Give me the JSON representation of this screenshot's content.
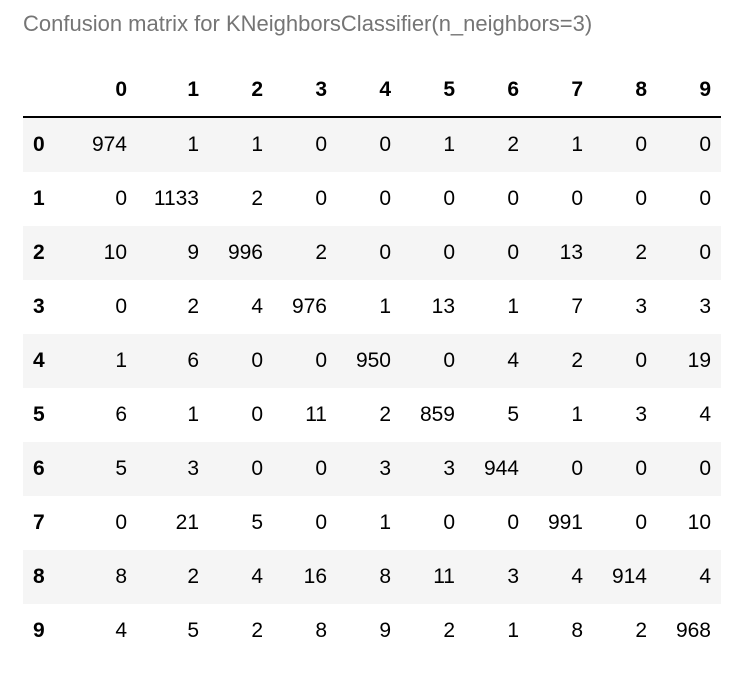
{
  "chart_data": {
    "type": "table",
    "title": "Confusion matrix for KNeighborsClassifier(n_neighbors=3)",
    "columns": [
      "0",
      "1",
      "2",
      "3",
      "4",
      "5",
      "6",
      "7",
      "8",
      "9"
    ],
    "rows": [
      "0",
      "1",
      "2",
      "3",
      "4",
      "5",
      "6",
      "7",
      "8",
      "9"
    ],
    "values": [
      [
        974,
        1,
        1,
        0,
        0,
        1,
        2,
        1,
        0,
        0
      ],
      [
        0,
        1133,
        2,
        0,
        0,
        0,
        0,
        0,
        0,
        0
      ],
      [
        10,
        9,
        996,
        2,
        0,
        0,
        0,
        13,
        2,
        0
      ],
      [
        0,
        2,
        4,
        976,
        1,
        13,
        1,
        7,
        3,
        3
      ],
      [
        1,
        6,
        0,
        0,
        950,
        0,
        4,
        2,
        0,
        19
      ],
      [
        6,
        1,
        0,
        11,
        2,
        859,
        5,
        1,
        3,
        4
      ],
      [
        5,
        3,
        0,
        0,
        3,
        3,
        944,
        0,
        0,
        0
      ],
      [
        0,
        21,
        5,
        0,
        1,
        0,
        0,
        991,
        0,
        10
      ],
      [
        8,
        2,
        4,
        16,
        8,
        11,
        3,
        4,
        914,
        4
      ],
      [
        4,
        5,
        2,
        8,
        9,
        2,
        1,
        8,
        2,
        968
      ]
    ]
  },
  "colors": {
    "caption": "#757575",
    "row_stripe": "#f5f5f5",
    "row_plain": "#ffffff"
  }
}
